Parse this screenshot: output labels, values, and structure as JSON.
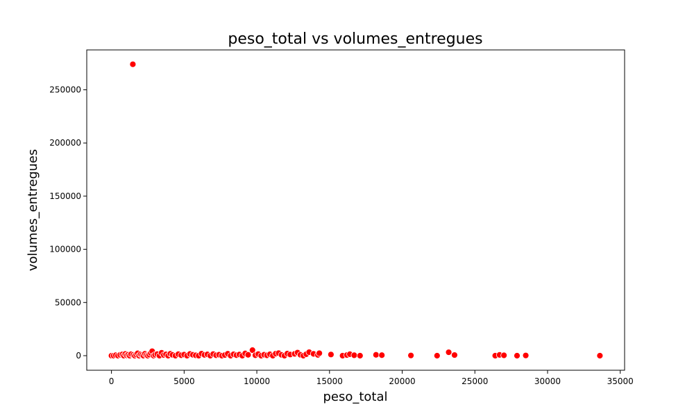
{
  "chart_data": {
    "type": "scatter",
    "title": "peso_total vs volumes_entregues",
    "xlabel": "peso_total",
    "ylabel": "volumes_entregues",
    "xlim": [
      -1700,
      35300
    ],
    "ylim": [
      -13700,
      287500
    ],
    "xticks": [
      0,
      5000,
      10000,
      15000,
      20000,
      25000,
      30000,
      35000
    ],
    "yticks": [
      0,
      50000,
      100000,
      150000,
      200000,
      250000
    ],
    "grid": false,
    "point_color": "#ff0000",
    "series": [
      {
        "x": [
          1470,
          0,
          150,
          300,
          450,
          600,
          750,
          850,
          950,
          1050,
          1150,
          1250,
          1350,
          1500,
          1600,
          1700,
          1800,
          1900,
          2000,
          2100,
          2200,
          2300,
          2400,
          2500,
          2600,
          2700,
          2800,
          2900,
          3000,
          3150,
          3300,
          3450,
          3600,
          3750,
          3900,
          4050,
          4200,
          4400,
          4600,
          4800,
          5000,
          5200,
          5400,
          5600,
          5800,
          6000,
          6200,
          6400,
          6600,
          6800,
          7000,
          7200,
          7400,
          7600,
          7800,
          8000,
          8200,
          8400,
          8600,
          8800,
          9000,
          9200,
          9400,
          9700,
          9900,
          10100,
          10300,
          10500,
          10700,
          10900,
          11100,
          11300,
          11500,
          11700,
          11900,
          12100,
          12300,
          12600,
          12800,
          13000,
          13200,
          13400,
          13600,
          13900,
          14200,
          14300,
          15100,
          15900,
          16200,
          16400,
          16700,
          17100,
          18200,
          18600,
          20600,
          22400,
          23200,
          23600,
          26400,
          26700,
          27000,
          27900,
          28500,
          33600
        ],
        "y": [
          274000,
          0,
          0,
          500,
          0,
          800,
          1200,
          0,
          1600,
          300,
          900,
          0,
          1400,
          700,
          0,
          1100,
          2200,
          0,
          1300,
          600,
          0,
          1800,
          400,
          0,
          1000,
          2500,
          4200,
          0,
          900,
          1500,
          0,
          2700,
          600,
          1200,
          0,
          1800,
          700,
          0,
          1400,
          400,
          1000,
          0,
          1600,
          800,
          300,
          0,
          1900,
          700,
          1200,
          0,
          1500,
          400,
          900,
          0,
          600,
          1800,
          0,
          1300,
          500,
          1100,
          0,
          2100,
          800,
          5200,
          400,
          1500,
          0,
          900,
          300,
          1300,
          0,
          1900,
          2400,
          700,
          0,
          2000,
          1100,
          1700,
          2900,
          800,
          0,
          1400,
          3300,
          1700,
          700,
          2300,
          1100,
          0,
          600,
          1400,
          400,
          0,
          800,
          500,
          200,
          0,
          3200,
          600,
          0,
          700,
          300,
          0,
          200,
          0
        ]
      }
    ]
  }
}
